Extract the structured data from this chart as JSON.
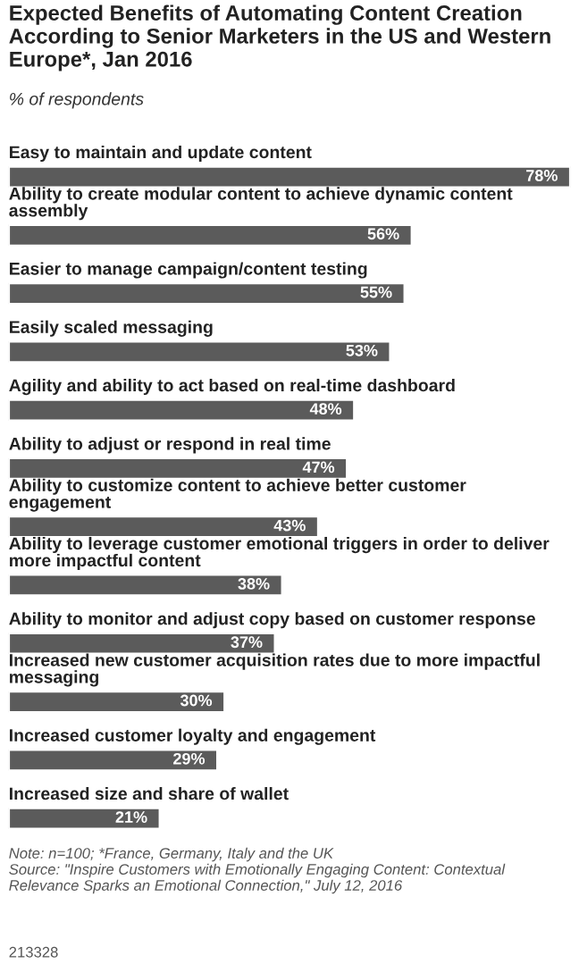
{
  "chart_data": {
    "type": "bar",
    "orientation": "horizontal",
    "title": "Expected Benefits of Automating Content Creation According to Senior Marketers in the US and Western Europe*, Jan 2016",
    "subtitle": "% of respondents",
    "categories": [
      "Easy to maintain and update content",
      "Ability to create modular content to achieve dynamic content assembly",
      "Easier to manage campaign/content testing",
      "Easily scaled messaging",
      "Agility and ability to act based on real-time dashboard",
      "Ability to adjust or respond in real time",
      "Ability to customize content to achieve better customer engagement",
      "Ability to leverage customer emotional triggers in order to deliver more impactful content",
      "Ability to monitor and adjust copy based on customer response",
      "Increased new customer acquisition rates due to more impactful messaging",
      "Increased customer loyalty and engagement",
      "Increased size and share of wallet"
    ],
    "values": [
      78,
      56,
      55,
      53,
      48,
      47,
      43,
      38,
      37,
      30,
      29,
      21
    ],
    "value_labels": [
      "78%",
      "56%",
      "55%",
      "53%",
      "48%",
      "47%",
      "43%",
      "38%",
      "37%",
      "30%",
      "29%",
      "21%"
    ],
    "color": "#5b5b5b",
    "annotations": [
      "Note: n=100; *France, Germany, Italy and the UK",
      "Source: \"Inspire Customers with Emotionally Engaging Content: Contextual Relevance Sparks an Emotional Connection,\" July 12, 2016",
      "213328"
    ]
  }
}
